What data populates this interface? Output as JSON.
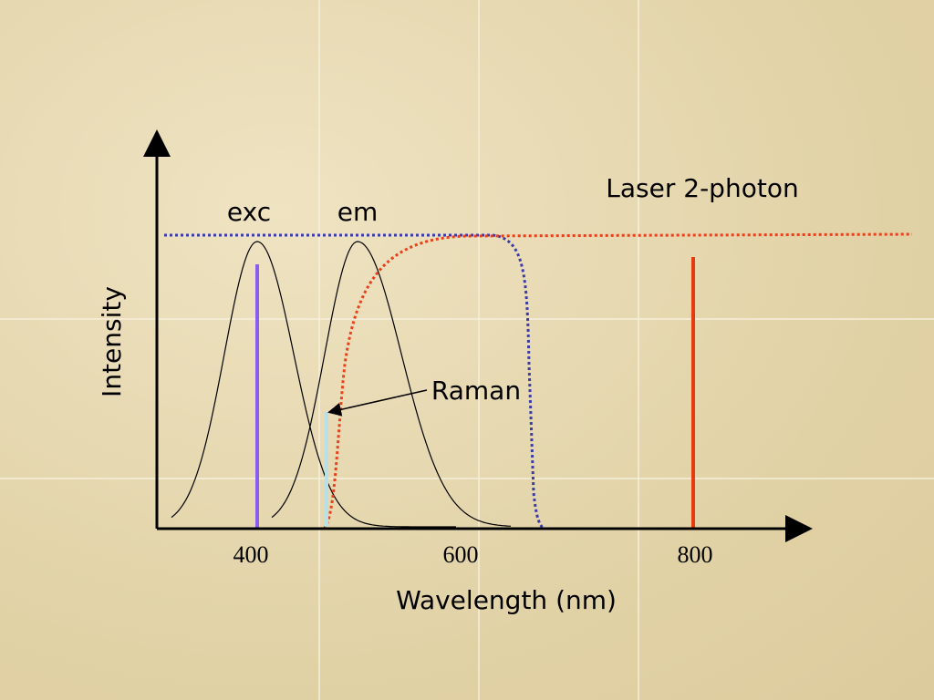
{
  "y_axis_label": "Intensity",
  "x_axis_label": "Wavelength (nm)",
  "x_ticks": [
    400,
    600,
    800
  ],
  "labels": {
    "exc": "exc",
    "em": "em",
    "raman": "Raman",
    "laser": "Laser 2-photon"
  }
}
